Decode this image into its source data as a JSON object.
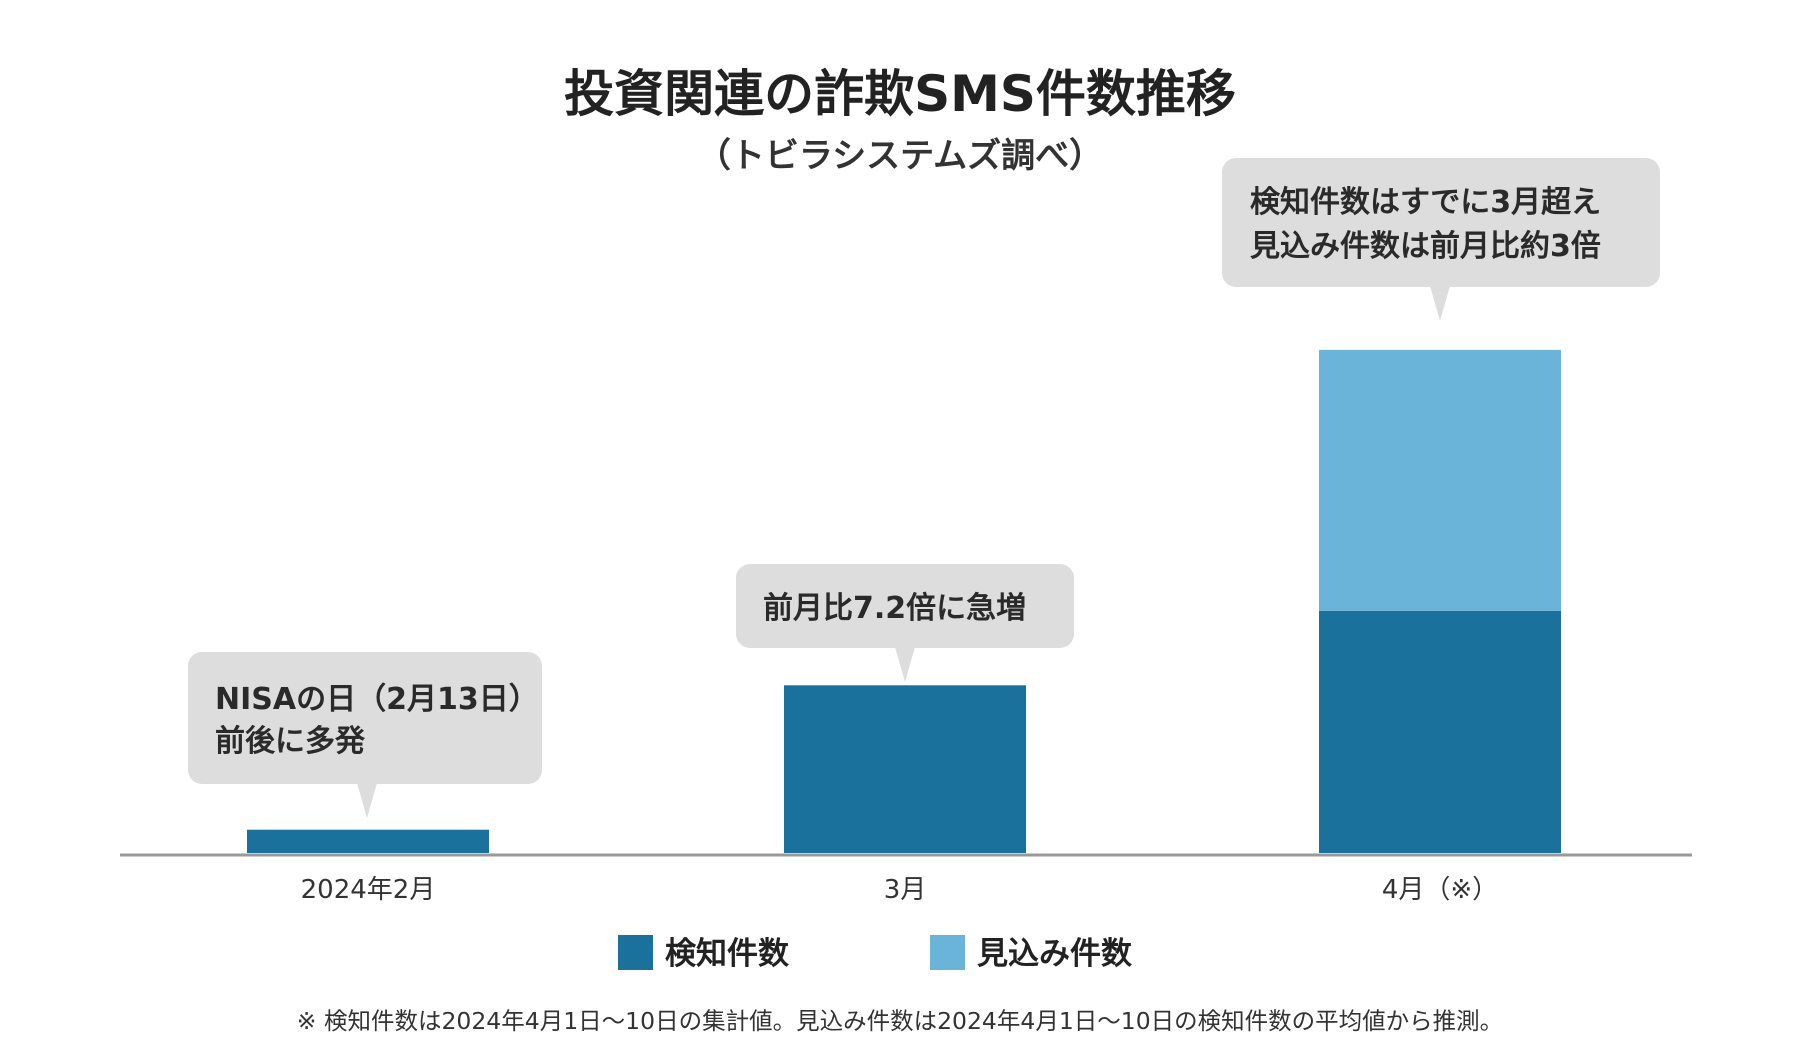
{
  "title": "投資関連の詐欺SMS件数推移",
  "subtitle": "（トビラシステムズ調べ）",
  "colors": {
    "detected": "#1a719c",
    "estimated": "#6ab4da",
    "callout_bg": "#dddddd",
    "axis": "#999999"
  },
  "chart_data": {
    "type": "bar",
    "stacked": true,
    "categories": [
      "2024年2月",
      "3月",
      "4月（※）"
    ],
    "series": [
      {
        "name": "検知件数",
        "values": [
          1,
          7.2,
          10.4
        ]
      },
      {
        "name": "見込み件数",
        "values": [
          0,
          0,
          11.2
        ]
      }
    ],
    "ylim": [
      0,
      24
    ],
    "grid": false,
    "legend_position": "bottom-center"
  },
  "legend": [
    {
      "label": "検知件数",
      "color": "#1a719c"
    },
    {
      "label": "見込み件数",
      "color": "#6ab4da"
    }
  ],
  "callouts": [
    {
      "lines": [
        "NISAの日（2月13日）",
        "前後に多発"
      ]
    },
    {
      "lines": [
        "前月比7.2倍に急増"
      ]
    },
    {
      "lines": [
        "検知件数はすでに3月超え",
        "見込み件数は前月比約3倍"
      ]
    }
  ],
  "footnote": "※ 検知件数は2024年4月1日～10日の集計値。見込み件数は2024年4月1日～10日の検知件数の平均値から推測。"
}
